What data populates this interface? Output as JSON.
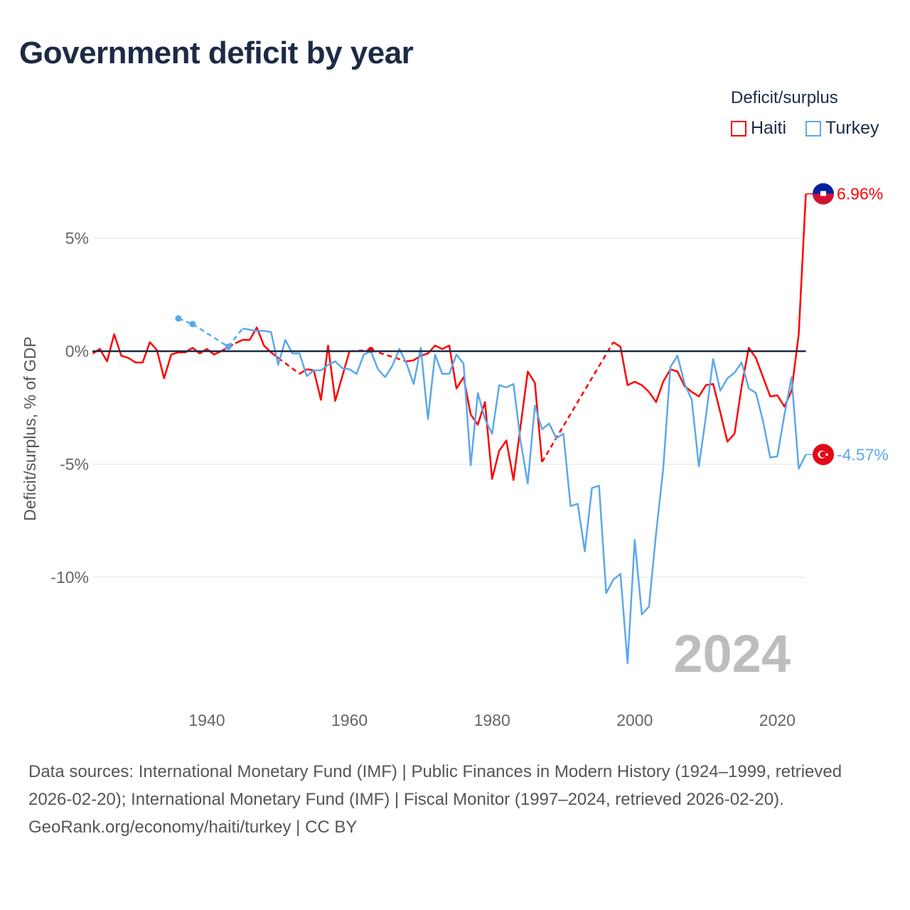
{
  "title": "Government deficit by year",
  "legend": {
    "title": "Deficit/surplus",
    "items": [
      {
        "name": "Haiti",
        "color": "#ff0000"
      },
      {
        "name": "Turkey",
        "color": "#5ba8ec"
      }
    ]
  },
  "footer": {
    "sources": "Data sources: International Monetary Fund (IMF) | Public Finances in Modern History (1924–1999, retrieved 2026-02-20); International Monetary Fund (IMF) | Fiscal Monitor (1997–2024, retrieved 2026-02-20).",
    "credit": "GeoRank.org/economy/haiti/turkey | CC BY"
  },
  "chart_data": {
    "type": "line",
    "title": "Government deficit by year",
    "ylabel": "Deficit/surplus, % of GDP",
    "xlabel": "",
    "xlim": [
      1924,
      2024
    ],
    "ylim": [
      -14.5,
      8
    ],
    "yticks": [
      {
        "v": 5,
        "label": "5%"
      },
      {
        "v": 0,
        "label": "0%"
      },
      {
        "v": -5,
        "label": "-5%"
      },
      {
        "v": -10,
        "label": "-10%"
      }
    ],
    "xticks": [
      1940,
      1960,
      1980,
      2000,
      2020
    ],
    "year_label": "2024",
    "grid": true,
    "legend_position": "top-right",
    "series": [
      {
        "name": "Haiti",
        "color": "#ff0000",
        "end_label": "6.96%",
        "flag": "haiti-flag",
        "start": 1924,
        "values": [
          -0.1,
          0.1,
          -0.45,
          0.75,
          -0.2,
          -0.3,
          -0.5,
          -0.5,
          0.4,
          0.05,
          -1.2,
          -0.15,
          -0.05,
          -0.05,
          0.15,
          -0.1,
          0.1,
          -0.15,
          0.0,
          null,
          0.35,
          0.5,
          0.5,
          1.05,
          0.25,
          -0.05,
          -0.3,
          null,
          null,
          -1.0,
          -0.8,
          -0.85,
          -2.15,
          0.25,
          -2.2,
          -1.1,
          0.0,
          null,
          null,
          0.05,
          null,
          null,
          null,
          null,
          -0.45,
          -0.4,
          -0.2,
          -0.1,
          0.25,
          0.1,
          0.25,
          -1.65,
          -1.15,
          -2.8,
          -3.25,
          -2.25,
          -5.65,
          -4.4,
          -3.95,
          -5.7,
          -3.3,
          -0.9,
          -1.4,
          -4.9,
          null,
          null,
          null,
          null,
          null,
          null,
          null,
          null,
          null,
          0.4,
          0.2,
          -1.5,
          -1.35,
          -1.5,
          -1.8,
          -2.25,
          -1.35,
          -0.8,
          -0.9,
          -1.55,
          -1.8,
          -2.0,
          -1.5,
          -1.45,
          -2.7,
          -4.0,
          -3.65,
          -1.55,
          0.15,
          -0.3,
          -1.15,
          -2.0,
          -1.95,
          -2.45,
          -1.75,
          0.75,
          6.96
        ]
      },
      {
        "name": "Turkey",
        "color": "#5ba8ec",
        "end_label": "-4.57%",
        "flag": "turkey-flag",
        "start": 1924,
        "values": [
          null,
          null,
          null,
          null,
          null,
          null,
          null,
          null,
          null,
          null,
          null,
          null,
          1.45,
          null,
          1.2,
          null,
          null,
          null,
          null,
          0.2,
          null,
          1.0,
          0.95,
          0.9,
          0.9,
          0.85,
          -0.6,
          0.5,
          -0.1,
          -0.1,
          -1.1,
          -0.85,
          -0.85,
          -0.6,
          -0.45,
          -0.75,
          -0.8,
          -1.0,
          -0.15,
          0.0,
          -0.8,
          -1.15,
          -0.65,
          0.1,
          -0.55,
          -1.45,
          0.15,
          -3.0,
          -0.15,
          -1.0,
          -1.0,
          -0.15,
          -0.55,
          -5.05,
          -1.85,
          -3.0,
          -3.65,
          -1.5,
          -1.6,
          -1.45,
          -4.0,
          -5.85,
          -2.4,
          -3.45,
          -3.2,
          -3.85,
          -3.65,
          -6.85,
          -6.75,
          -8.85,
          -6.05,
          -5.95,
          -10.7,
          -10.1,
          -9.85,
          -13.8,
          -8.35,
          -11.65,
          -11.3,
          -8.05,
          -5.2,
          -0.7,
          -0.2,
          -1.45,
          -2.15,
          -5.1,
          -2.85,
          -0.35,
          -1.75,
          -1.2,
          -0.95,
          -0.5,
          -1.65,
          -1.85,
          -3.1,
          -4.7,
          -4.65,
          -2.8,
          -1.15,
          -5.2,
          -4.57
        ]
      }
    ]
  }
}
